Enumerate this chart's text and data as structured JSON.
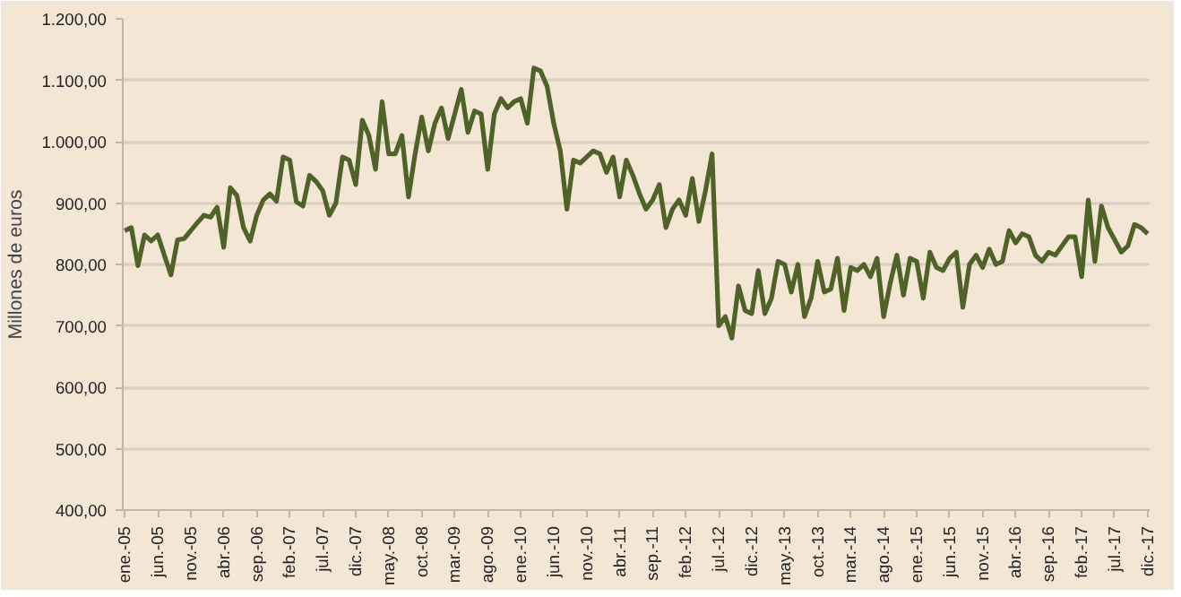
{
  "chart_data": {
    "type": "line",
    "ylabel": "Millones de euros",
    "categories": [
      "ene.-05",
      null,
      null,
      null,
      null,
      "jun.-05",
      null,
      null,
      null,
      null,
      "nov.-05",
      null,
      null,
      null,
      null,
      "abr.-06",
      null,
      null,
      null,
      null,
      "sep.-06",
      null,
      null,
      null,
      null,
      "feb.-07",
      null,
      null,
      null,
      null,
      "jul.-07",
      null,
      null,
      null,
      null,
      "dic.-07",
      null,
      null,
      null,
      null,
      "may.-08",
      null,
      null,
      null,
      null,
      "oct.-08",
      null,
      null,
      null,
      null,
      "mar.-09",
      null,
      null,
      null,
      null,
      "ago.-09",
      null,
      null,
      null,
      null,
      "ene.-10",
      null,
      null,
      null,
      null,
      "jun.-10",
      null,
      null,
      null,
      null,
      "nov.-10",
      null,
      null,
      null,
      null,
      "abr.-11",
      null,
      null,
      null,
      null,
      "sep.-11",
      null,
      null,
      null,
      null,
      "feb.-12",
      null,
      null,
      null,
      null,
      "jul.-12",
      null,
      null,
      null,
      null,
      "dic.-12",
      null,
      null,
      null,
      null,
      "may.-13",
      null,
      null,
      null,
      null,
      "oct.-13",
      null,
      null,
      null,
      null,
      "mar.-14",
      null,
      null,
      null,
      null,
      "ago.-14",
      null,
      null,
      null,
      null,
      "ene.-15",
      null,
      null,
      null,
      null,
      "jun.-15",
      null,
      null,
      null,
      null,
      "nov.-15",
      null,
      null,
      null,
      null,
      "abr.-16",
      null,
      null,
      null,
      null,
      "sep.-16",
      null,
      null,
      null,
      null,
      "feb.-17",
      null,
      null,
      null,
      null,
      "jul.-17",
      null,
      null,
      null,
      null,
      "dic.-17"
    ],
    "series": [
      {
        "color": "#4f6228",
        "values": [
          855,
          860,
          798,
          848,
          838,
          848,
          815,
          783,
          840,
          842,
          855,
          868,
          880,
          877,
          893,
          828,
          925,
          912,
          860,
          838,
          880,
          905,
          915,
          903,
          975,
          970,
          902,
          895,
          945,
          935,
          920,
          880,
          900,
          975,
          970,
          930,
          1035,
          1010,
          955,
          1065,
          980,
          980,
          1010,
          910,
          980,
          1040,
          985,
          1030,
          1055,
          1005,
          1045,
          1085,
          1015,
          1050,
          1045,
          955,
          1045,
          1070,
          1055,
          1065,
          1070,
          1030,
          1120,
          1115,
          1090,
          1030,
          985,
          890,
          970,
          965,
          975,
          985,
          980,
          950,
          975,
          910,
          970,
          945,
          915,
          890,
          905,
          930,
          860,
          890,
          905,
          880,
          940,
          870,
          920,
          980,
          700,
          715,
          680,
          765,
          725,
          720,
          790,
          720,
          745,
          805,
          800,
          755,
          800,
          715,
          745,
          805,
          755,
          760,
          810,
          725,
          795,
          790,
          800,
          780,
          810,
          715,
          770,
          815,
          750,
          810,
          805,
          745,
          820,
          795,
          790,
          810,
          820,
          730,
          800,
          815,
          795,
          825,
          800,
          805,
          855,
          835,
          850,
          845,
          815,
          805,
          820,
          815,
          830,
          845,
          845,
          780,
          905,
          805,
          895,
          860,
          840,
          820,
          830,
          865,
          860,
          850
        ]
      }
    ],
    "ylim": [
      400,
      1200
    ],
    "yticks": [
      {
        "value": 400,
        "label": "400,00"
      },
      {
        "value": 500,
        "label": "500,00"
      },
      {
        "value": 600,
        "label": "600,00"
      },
      {
        "value": 700,
        "label": "700,00"
      },
      {
        "value": 800,
        "label": "800,00"
      },
      {
        "value": 900,
        "label": "900,00"
      },
      {
        "value": 1000,
        "label": "1.000,00"
      },
      {
        "value": 1100,
        "label": "1.100,00"
      },
      {
        "value": 1200,
        "label": "1.200,00"
      }
    ],
    "grid": "y",
    "marker": "none",
    "line_style": "solid"
  }
}
